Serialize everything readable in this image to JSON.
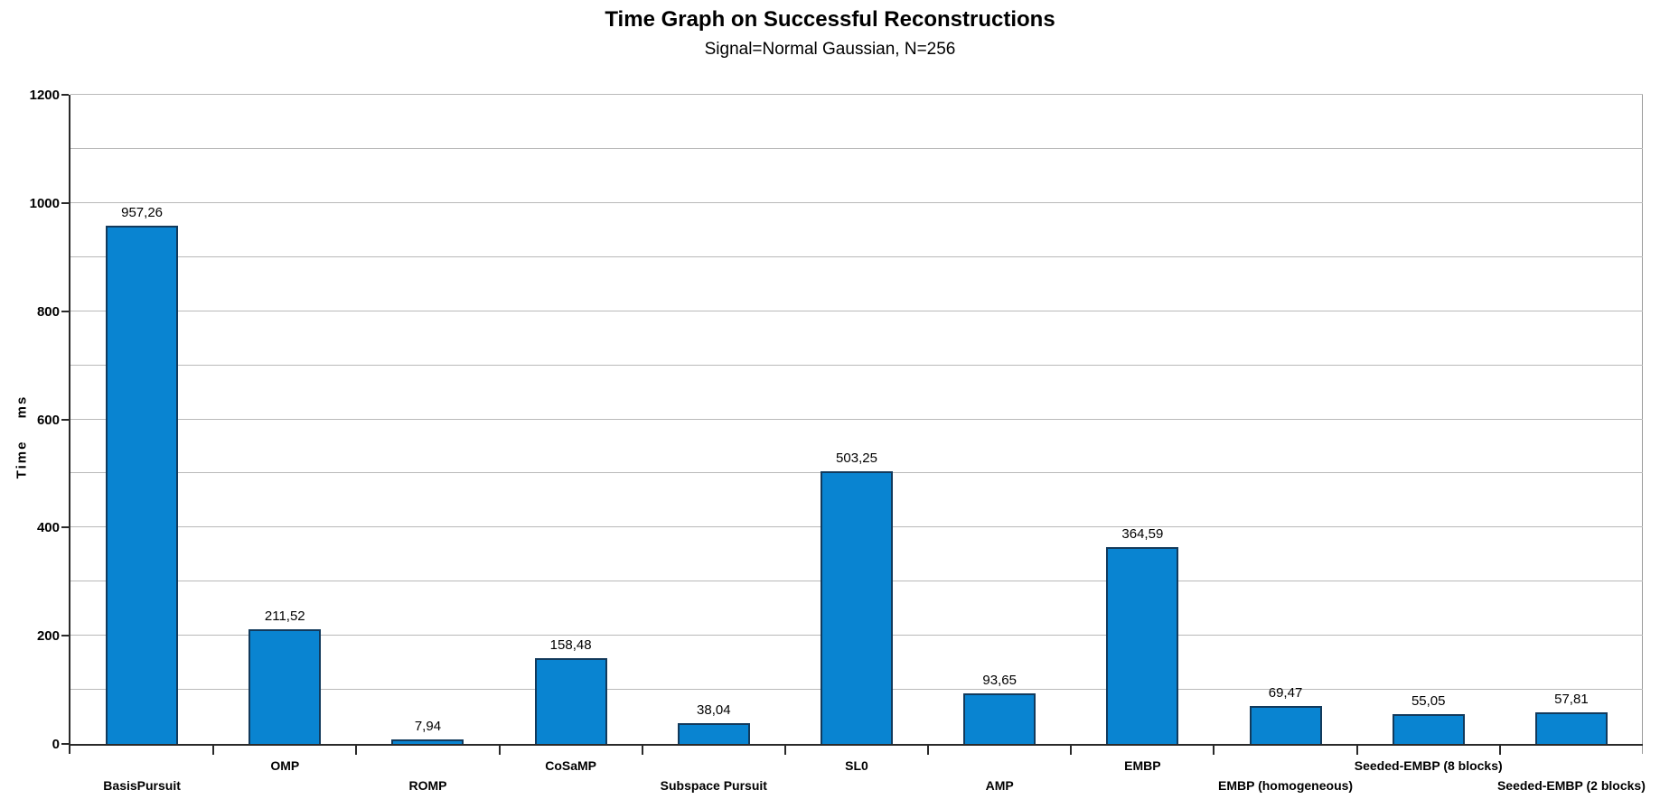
{
  "header": {
    "title": "Time Graph on Successful Reconstructions",
    "subtitle": "Signal=Normal Gaussian, N=256"
  },
  "chart_data": {
    "type": "bar",
    "title": "Time Graph on Successful Reconstructions",
    "subtitle": "Signal=Normal Gaussian, N=256",
    "xlabel": "",
    "ylabel": "Time ms",
    "categories": [
      "BasisPursuit",
      "OMP",
      "ROMP",
      "CoSaMP",
      "Subspace Pursuit",
      "SL0",
      "AMP",
      "EMBP",
      "EMBP (homogeneous)",
      "Seeded-EMBP (8 blocks)",
      "Seeded-EMBP (2 blocks)"
    ],
    "values": [
      957.26,
      211.52,
      7.94,
      158.48,
      38.04,
      503.25,
      93.65,
      364.59,
      69.47,
      55.05,
      57.81
    ],
    "value_labels": [
      "957,26",
      "211,52",
      "7,94",
      "158,48",
      "38,04",
      "503,25",
      "93,65",
      "364,59",
      "69,47",
      "55,05",
      "57,81"
    ],
    "ylim": [
      0,
      1200
    ],
    "y_ticks": [
      0,
      200,
      400,
      600,
      800,
      1000,
      1200
    ],
    "grid_step": 100,
    "grid": true,
    "legend": "none",
    "colors": {
      "bar_fill": "#0984d1",
      "bar_border": "#123a5c",
      "gridline": "#b9b9b9",
      "axis": "#2a2a2a",
      "right_border": "#9a9a9a",
      "text": "#000000",
      "background": "#ffffff"
    }
  }
}
